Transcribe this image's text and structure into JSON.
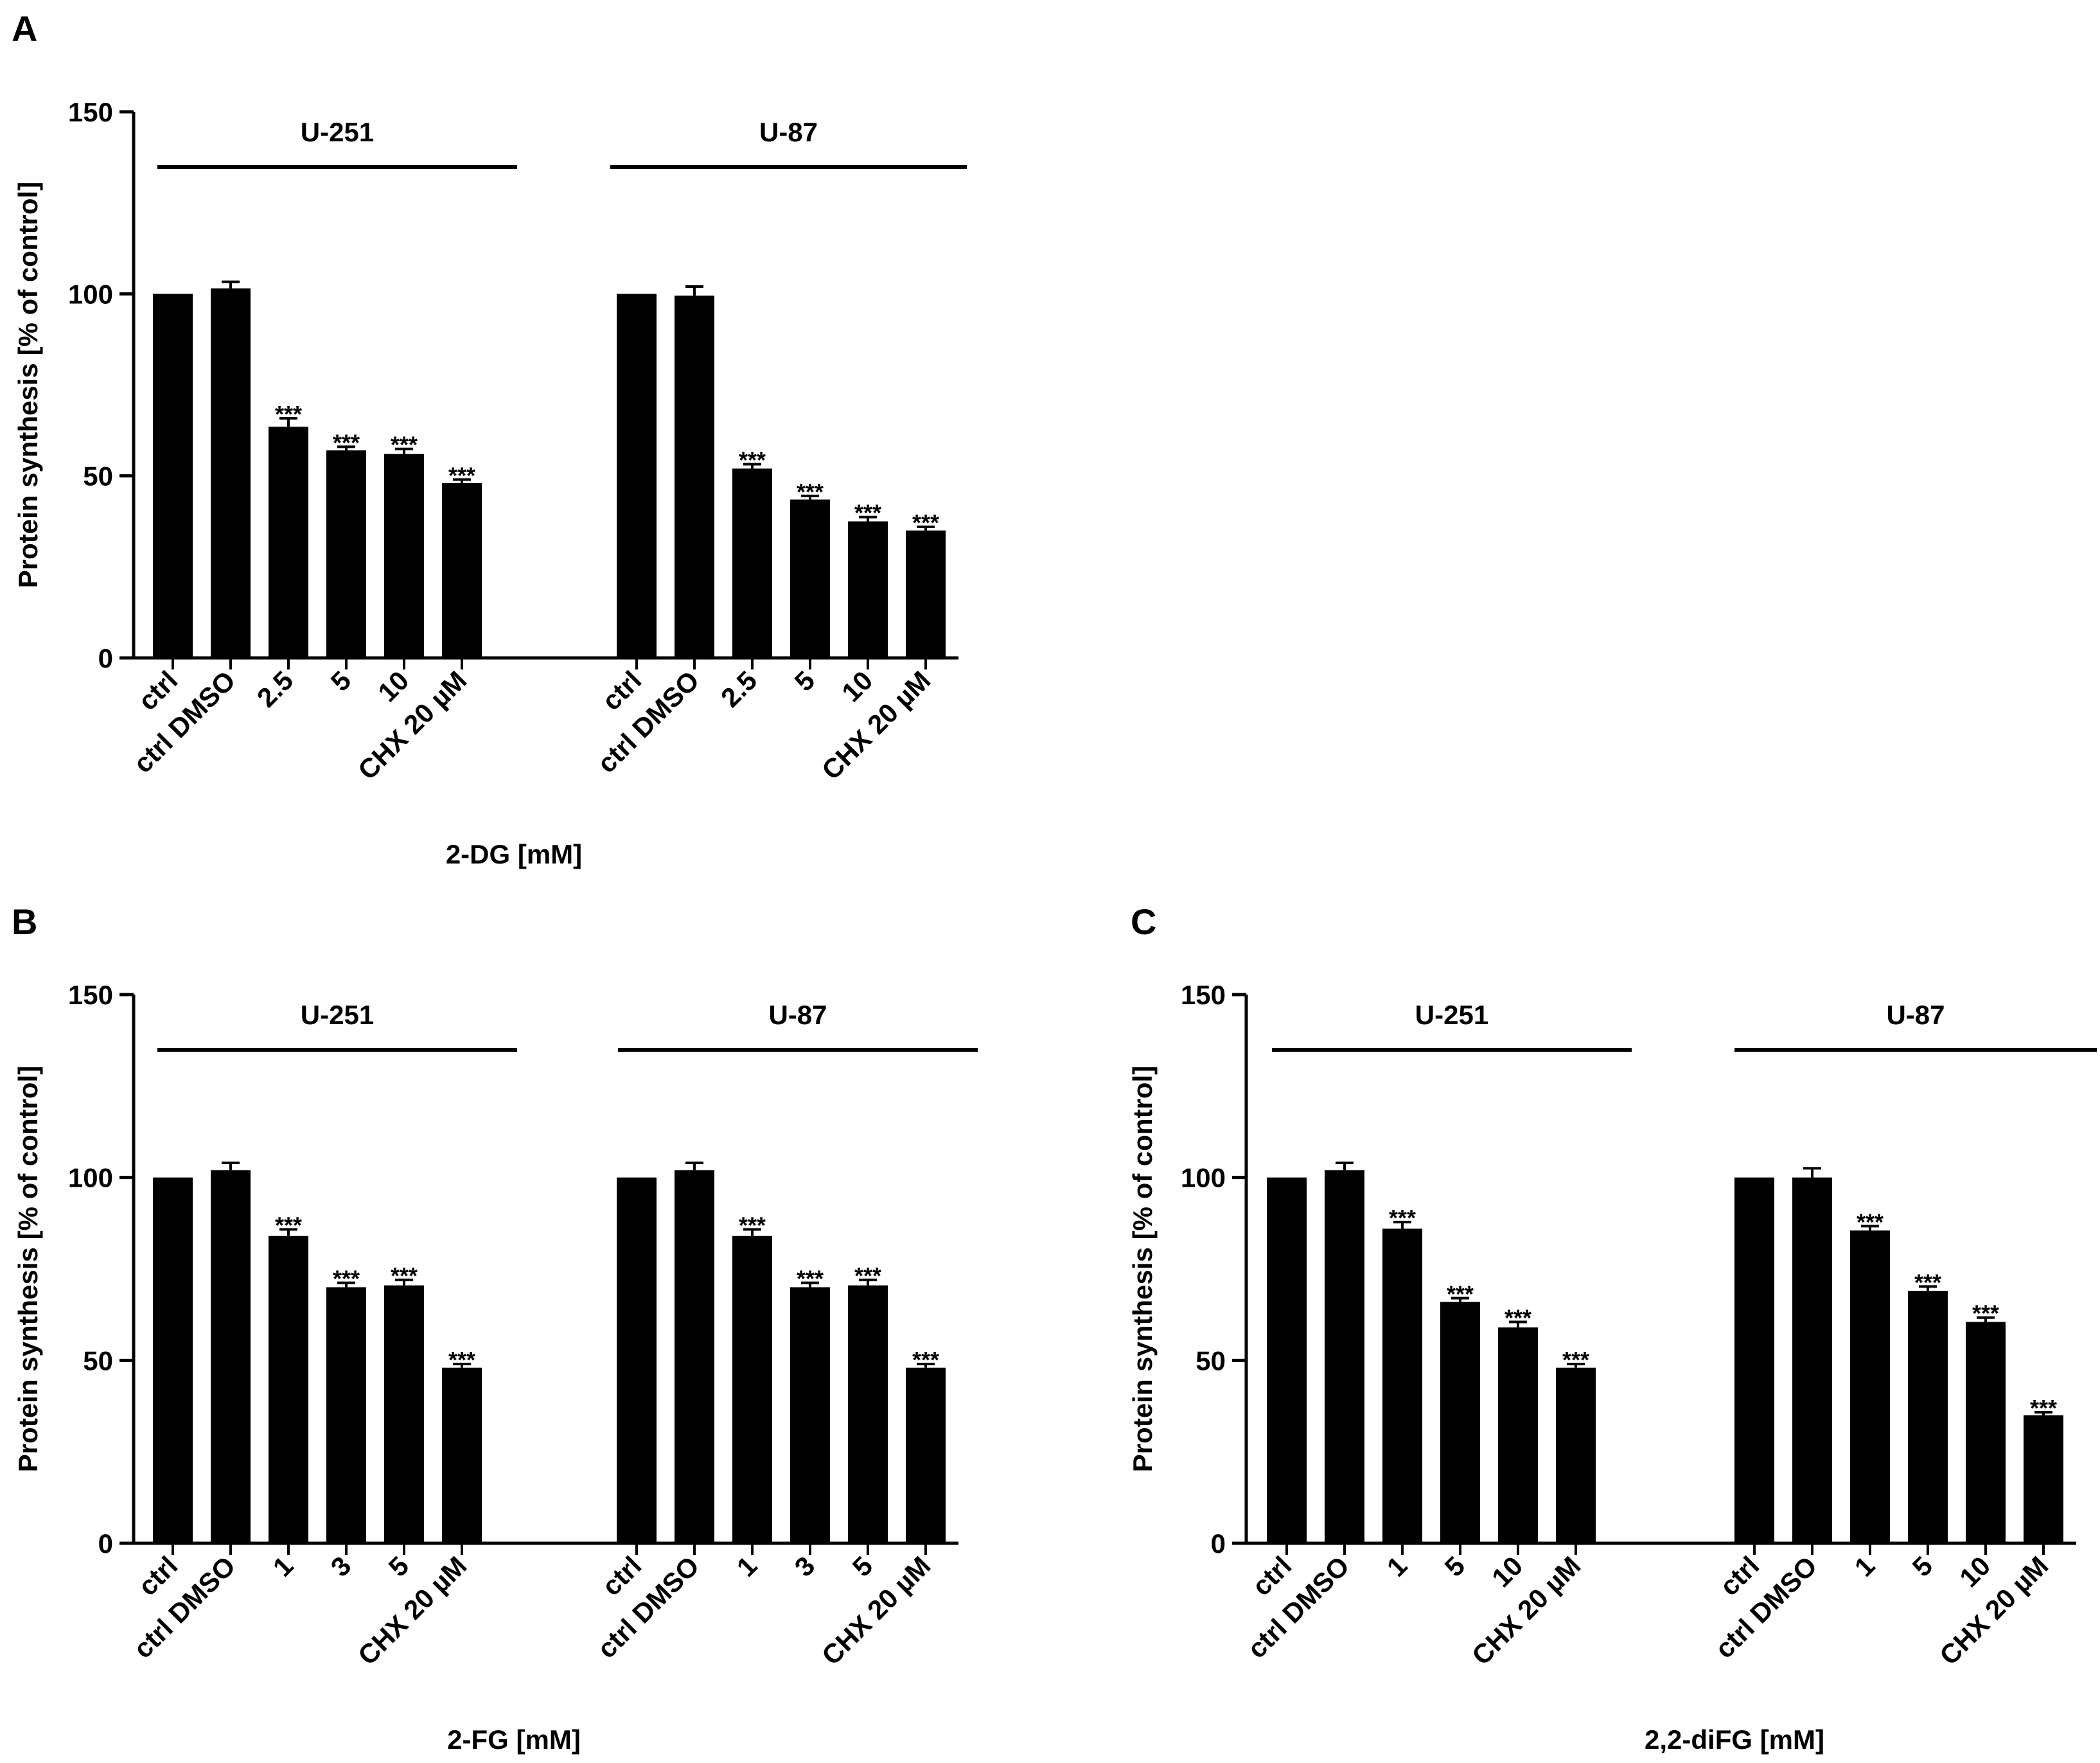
{
  "colors": {
    "bar": "#000000",
    "axis": "#000000",
    "background": "#ffffff"
  },
  "chart_data": [
    {
      "type": "bar",
      "panel": "A",
      "ylabel": "Protein synthesis [% of control]",
      "xlabel": "2-DG [mM]",
      "ylim": [
        0,
        150
      ],
      "yticks": [
        0,
        50,
        100,
        150
      ],
      "groups": [
        {
          "name": "U-251",
          "categories": [
            "ctrl",
            "ctrl DMSO",
            "2.5",
            "5",
            "10",
            "CHX 20 µM"
          ],
          "values": [
            100,
            101.5,
            63.5,
            57,
            56,
            48
          ],
          "errors": [
            0,
            1.8,
            2.3,
            1.0,
            1.4,
            1.0
          ],
          "significance": [
            "",
            "",
            "***",
            "***",
            "***",
            "***"
          ]
        },
        {
          "name": "U-87",
          "categories": [
            "ctrl",
            "ctrl DMSO",
            "2.5",
            "5",
            "10",
            "CHX 20 µM"
          ],
          "values": [
            100,
            99.5,
            52,
            43.5,
            37.5,
            35
          ],
          "errors": [
            0,
            2.5,
            1.2,
            1.0,
            1.2,
            1.0
          ],
          "significance": [
            "",
            "",
            "***",
            "***",
            "***",
            "***"
          ]
        }
      ]
    },
    {
      "type": "bar",
      "panel": "B",
      "ylabel": "Protein synthesis [% of control]",
      "xlabel": "2-FG [mM]",
      "ylim": [
        0,
        150
      ],
      "yticks": [
        0,
        50,
        100,
        150
      ],
      "groups": [
        {
          "name": "U-251",
          "categories": [
            "ctrl",
            "ctrl DMSO",
            "1",
            "3",
            "5",
            "CHX 20 µM"
          ],
          "values": [
            100,
            102,
            84,
            70,
            70.5,
            48
          ],
          "errors": [
            0,
            2.0,
            1.8,
            1.2,
            1.5,
            1.0
          ],
          "significance": [
            "",
            "",
            "***",
            "***",
            "***",
            "***"
          ]
        },
        {
          "name": "U-87",
          "categories": [
            "ctrl",
            "ctrl DMSO",
            "1",
            "3",
            "5",
            "CHX 20 µM"
          ],
          "values": [
            100,
            102,
            84,
            70,
            70.5,
            48
          ],
          "errors": [
            0,
            2.0,
            1.8,
            1.2,
            1.5,
            1.0
          ],
          "significance": [
            "",
            "",
            "***",
            "***",
            "***",
            "***"
          ]
        }
      ]
    },
    {
      "type": "bar",
      "panel": "C",
      "ylabel": "Protein synthesis [% of control]",
      "xlabel": "2,2-diFG [mM]",
      "ylim": [
        0,
        150
      ],
      "yticks": [
        0,
        50,
        100,
        150
      ],
      "groups": [
        {
          "name": "U-251",
          "categories": [
            "ctrl",
            "ctrl DMSO",
            "1",
            "5",
            "10",
            "CHX 20 µM"
          ],
          "values": [
            100,
            102,
            86,
            66,
            59,
            48
          ],
          "errors": [
            0,
            2.0,
            1.8,
            1.0,
            1.5,
            1.0
          ],
          "significance": [
            "",
            "",
            "***",
            "***",
            "***",
            "***"
          ]
        },
        {
          "name": "U-87",
          "categories": [
            "ctrl",
            "ctrl DMSO",
            "1",
            "5",
            "10",
            "CHX 20 µM"
          ],
          "values": [
            100,
            100,
            85.5,
            69,
            60.5,
            35
          ],
          "errors": [
            0,
            2.5,
            1.2,
            1.2,
            1.2,
            0.8
          ],
          "significance": [
            "",
            "",
            "***",
            "***",
            "***",
            "***"
          ]
        }
      ]
    }
  ]
}
